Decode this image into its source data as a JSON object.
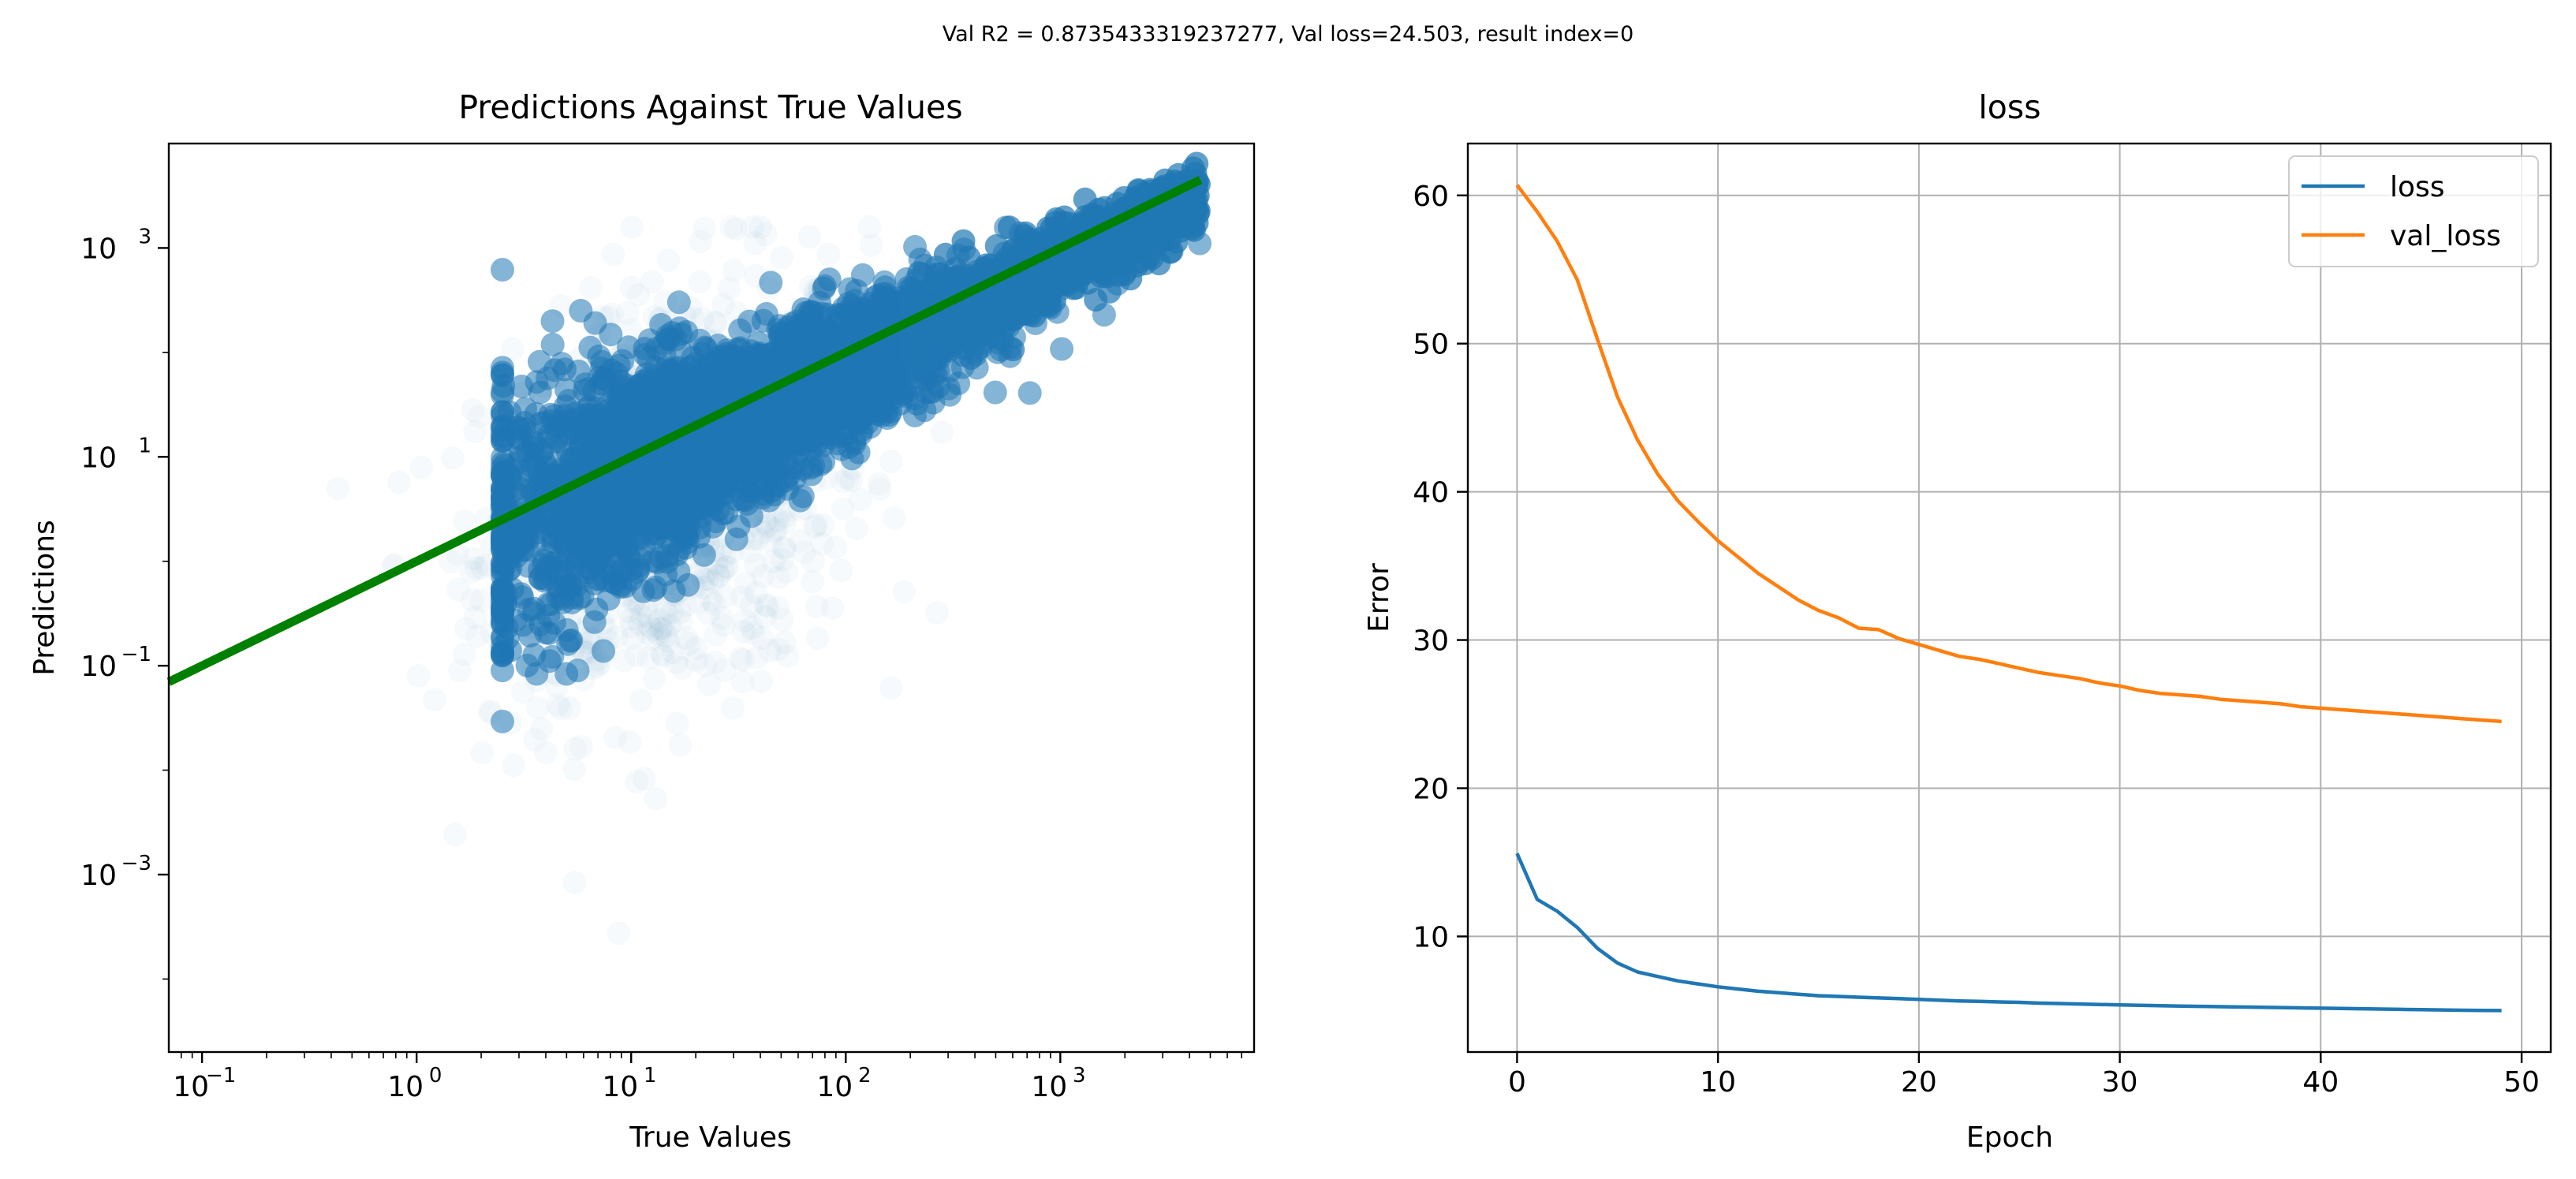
{
  "suptitle": "Val R2 = 0.8735433319237277, Val loss=24.503, result index=0",
  "chart_data": [
    {
      "type": "scatter",
      "title": "Predictions Against True Values",
      "xlabel": "True Values",
      "ylabel": "Predictions",
      "xscale": "log",
      "yscale": "log",
      "xlim": [
        0.07,
        8000
      ],
      "ylim": [
        2e-05,
        10000
      ],
      "x_ticks": [
        {
          "value": 0.1,
          "base": "10",
          "exp": "−1"
        },
        {
          "value": 1,
          "base": "10",
          "exp": "0"
        },
        {
          "value": 10,
          "base": "10",
          "exp": "1"
        },
        {
          "value": 100,
          "base": "10",
          "exp": "2"
        },
        {
          "value": 1000,
          "base": "10",
          "exp": "3"
        }
      ],
      "y_ticks": [
        {
          "value": 0.001,
          "base": "10",
          "exp": "−3"
        },
        {
          "value": 0.1,
          "base": "10",
          "exp": "−1"
        },
        {
          "value": 10,
          "base": "10",
          "exp": "1"
        },
        {
          "value": 1000,
          "base": "10",
          "exp": "3"
        }
      ],
      "point_color": "#1f77b4",
      "points_description_free": true,
      "reference_line": {
        "x": [
          0.07,
          4500
        ],
        "y": [
          0.07,
          4500
        ],
        "color": "#008000"
      }
    },
    {
      "type": "line",
      "title": "loss",
      "xlabel": "Epoch",
      "ylabel": "Error",
      "xlim": [
        -2.45,
        51.45
      ],
      "ylim": [
        2.2,
        63.5
      ],
      "x_ticks": [
        0,
        10,
        20,
        30,
        40,
        50
      ],
      "y_ticks": [
        10,
        20,
        30,
        40,
        50,
        60
      ],
      "grid": true,
      "legend": "top-right",
      "x": [
        0,
        1,
        2,
        3,
        4,
        5,
        6,
        7,
        8,
        9,
        10,
        11,
        12,
        13,
        14,
        15,
        16,
        17,
        18,
        19,
        20,
        21,
        22,
        23,
        24,
        25,
        26,
        27,
        28,
        29,
        30,
        31,
        32,
        33,
        34,
        35,
        36,
        37,
        38,
        39,
        40,
        41,
        42,
        43,
        44,
        45,
        46,
        47,
        48,
        49
      ],
      "series": [
        {
          "name": "loss",
          "color": "#1f77b4",
          "values": [
            15.6,
            12.5,
            11.7,
            10.6,
            9.2,
            8.2,
            7.6,
            7.3,
            7.0,
            6.8,
            6.6,
            6.45,
            6.3,
            6.2,
            6.1,
            6.0,
            5.95,
            5.9,
            5.85,
            5.8,
            5.75,
            5.7,
            5.65,
            5.62,
            5.58,
            5.55,
            5.5,
            5.47,
            5.44,
            5.41,
            5.38,
            5.35,
            5.33,
            5.3,
            5.28,
            5.26,
            5.24,
            5.22,
            5.2,
            5.18,
            5.16,
            5.14,
            5.12,
            5.1,
            5.08,
            5.06,
            5.04,
            5.02,
            5.01,
            5.0
          ]
        },
        {
          "name": "val_loss",
          "color": "#ff7f0e",
          "values": [
            60.7,
            58.9,
            56.9,
            54.3,
            50.3,
            46.4,
            43.5,
            41.2,
            39.4,
            38.0,
            36.7,
            35.6,
            34.5,
            33.6,
            32.7,
            32.0,
            31.5,
            30.8,
            30.7,
            30.1,
            29.7,
            29.3,
            28.9,
            28.7,
            28.4,
            28.1,
            27.8,
            27.6,
            27.4,
            27.1,
            26.9,
            26.6,
            26.4,
            26.3,
            26.2,
            26.0,
            25.9,
            25.8,
            25.7,
            25.5,
            25.4,
            25.3,
            25.2,
            25.1,
            25.0,
            24.9,
            24.8,
            24.7,
            24.6,
            24.5
          ]
        }
      ]
    }
  ]
}
